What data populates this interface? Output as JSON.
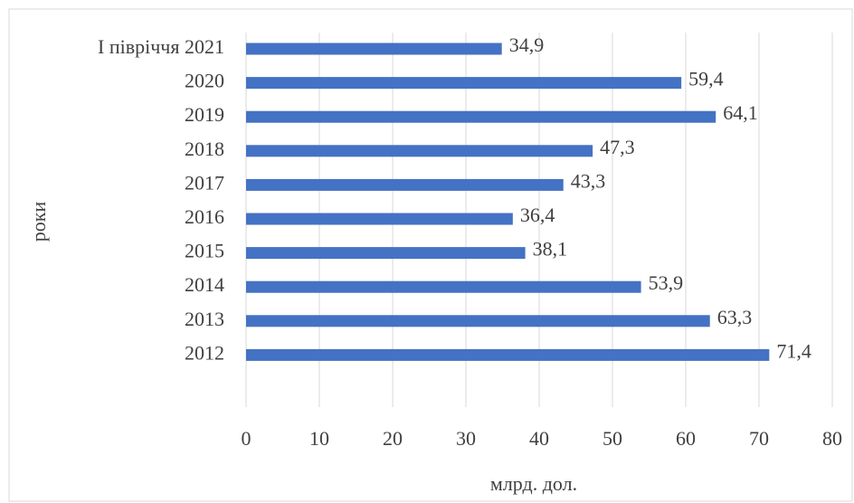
{
  "chart_data": {
    "type": "bar",
    "orientation": "horizontal",
    "categories": [
      "I півріччя 2021",
      "2020",
      "2019",
      "2018",
      "2017",
      "2016",
      "2015",
      "2014",
      "2013",
      "2012"
    ],
    "values": [
      34.9,
      59.4,
      64.1,
      47.3,
      43.3,
      36.4,
      38.1,
      53.9,
      63.3,
      71.4
    ],
    "value_labels": [
      "34,9",
      "59,4",
      "64,1",
      "47,3",
      "43,3",
      "36,4",
      "38,1",
      "53,9",
      "63,3",
      "71,4"
    ],
    "color": "#4472c4",
    "xlim": [
      0,
      80
    ],
    "xticks": [
      0,
      10,
      20,
      30,
      40,
      50,
      60,
      70,
      80
    ],
    "xlabel": "млрд. дол.",
    "ylabel": "роки",
    "grid": true
  }
}
